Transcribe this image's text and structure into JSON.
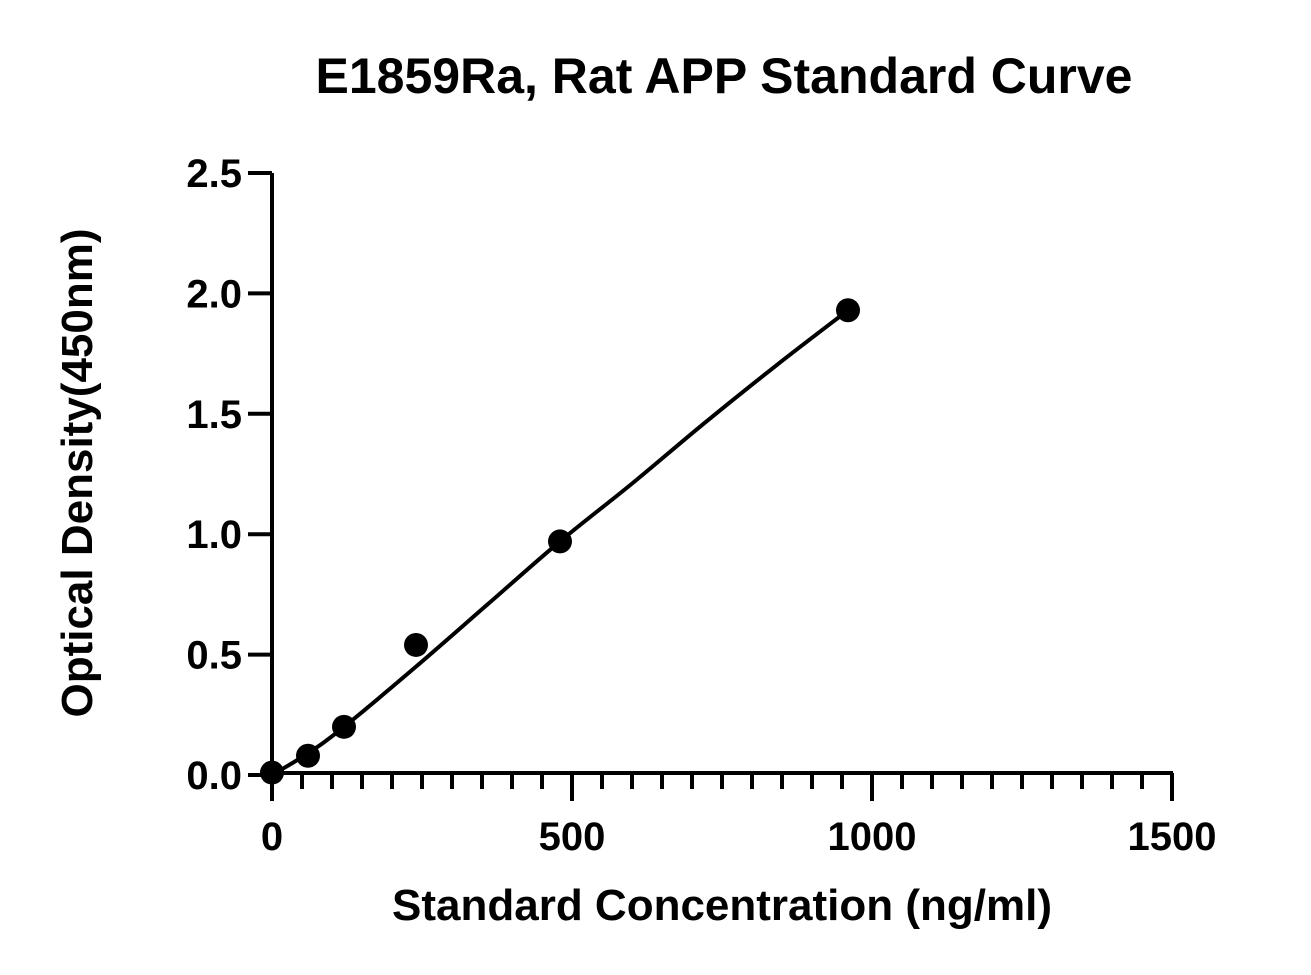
{
  "chart_data": {
    "type": "scatter",
    "title": "E1859Ra, Rat APP Standard Curve",
    "xlabel": "Standard Concentration (ng/ml)",
    "ylabel": "Optical Density(450nm)",
    "xlim": [
      0,
      1500
    ],
    "ylim": [
      0,
      2.5
    ],
    "x_ticks": [
      0,
      500,
      1000,
      1500
    ],
    "x_tick_labels": [
      "0",
      "500",
      "1000",
      "1500"
    ],
    "x_minor_step": 50,
    "y_ticks": [
      0,
      0.5,
      1.0,
      1.5,
      2.0,
      2.5
    ],
    "y_tick_labels": [
      "0.0",
      "0.5",
      "1.0",
      "1.5",
      "2.0",
      "2.5"
    ],
    "grid": false,
    "legend": "none",
    "series": [
      {
        "points": [
          {
            "x": 0,
            "y": 0.01
          },
          {
            "x": 60,
            "y": 0.08
          },
          {
            "x": 120,
            "y": 0.2
          },
          {
            "x": 240,
            "y": 0.54
          },
          {
            "x": 480,
            "y": 0.97
          },
          {
            "x": 960,
            "y": 1.93
          }
        ],
        "fit_curve": [
          {
            "x": 0,
            "y": 0.0
          },
          {
            "x": 60,
            "y": 0.09
          },
          {
            "x": 120,
            "y": 0.2
          },
          {
            "x": 240,
            "y": 0.45
          },
          {
            "x": 360,
            "y": 0.71
          },
          {
            "x": 480,
            "y": 0.97
          },
          {
            "x": 600,
            "y": 1.21
          },
          {
            "x": 720,
            "y": 1.46
          },
          {
            "x": 840,
            "y": 1.7
          },
          {
            "x": 960,
            "y": 1.93
          }
        ],
        "color": "#000000"
      }
    ]
  }
}
